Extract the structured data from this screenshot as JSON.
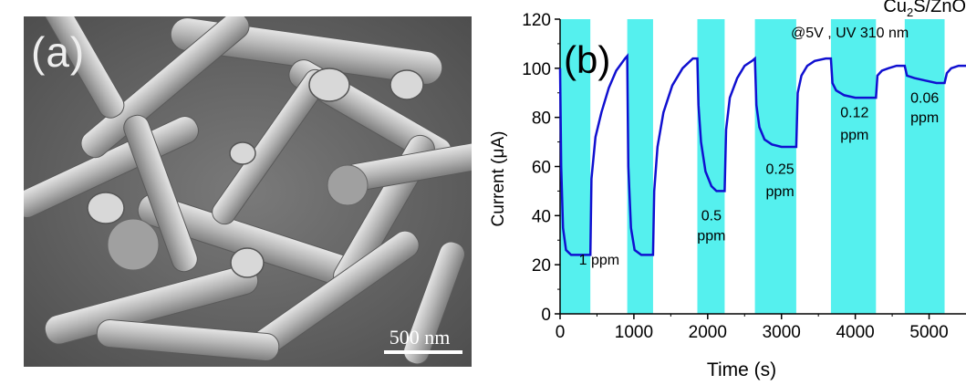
{
  "panel_a": {
    "label": "(a)",
    "scale_bar_label": "500 nm"
  },
  "chart_data": {
    "type": "line",
    "panel_label": "(b)",
    "corner_title": "Cu2S/ZnO",
    "condition": "@5V , UV  310 nm",
    "xlabel": "Time (s)",
    "ylabel": "Current (μA)",
    "xlim": [
      0,
      5500
    ],
    "ylim": [
      0,
      120
    ],
    "x_ticks": [
      0,
      1000,
      2000,
      3000,
      4000,
      5000
    ],
    "y_ticks": [
      0,
      20,
      40,
      60,
      80,
      100,
      120
    ],
    "line_color": "#1010d0",
    "band_color": "#55f0ee",
    "gas_on_intervals": [
      [
        0,
        410
      ],
      [
        910,
        1260
      ],
      [
        1860,
        2230
      ],
      [
        2640,
        3200
      ],
      [
        3670,
        4280
      ],
      [
        4670,
        5210
      ]
    ],
    "series": [
      {
        "values": [
          [
            0,
            100
          ],
          [
            15,
            60
          ],
          [
            40,
            35
          ],
          [
            80,
            26
          ],
          [
            150,
            24
          ],
          [
            410,
            24
          ],
          [
            425,
            55
          ],
          [
            480,
            72
          ],
          [
            560,
            82
          ],
          [
            660,
            92
          ],
          [
            760,
            99
          ],
          [
            880,
            104
          ],
          [
            910,
            105
          ],
          [
            925,
            60
          ],
          [
            960,
            35
          ],
          [
            1010,
            26
          ],
          [
            1100,
            24
          ],
          [
            1260,
            24
          ],
          [
            1275,
            50
          ],
          [
            1320,
            68
          ],
          [
            1400,
            82
          ],
          [
            1520,
            93
          ],
          [
            1660,
            100
          ],
          [
            1800,
            104
          ],
          [
            1860,
            104
          ],
          [
            1875,
            85
          ],
          [
            1910,
            70
          ],
          [
            1970,
            58
          ],
          [
            2050,
            52
          ],
          [
            2120,
            50
          ],
          [
            2230,
            50
          ],
          [
            2250,
            75
          ],
          [
            2300,
            88
          ],
          [
            2400,
            96
          ],
          [
            2500,
            101
          ],
          [
            2600,
            103
          ],
          [
            2640,
            104
          ],
          [
            2660,
            85
          ],
          [
            2700,
            76
          ],
          [
            2770,
            71
          ],
          [
            2870,
            69
          ],
          [
            3000,
            68
          ],
          [
            3200,
            68
          ],
          [
            3220,
            90
          ],
          [
            3270,
            97
          ],
          [
            3350,
            101
          ],
          [
            3450,
            103
          ],
          [
            3600,
            104
          ],
          [
            3670,
            104
          ],
          [
            3690,
            94
          ],
          [
            3740,
            91
          ],
          [
            3850,
            89
          ],
          [
            4000,
            88
          ],
          [
            4280,
            88
          ],
          [
            4300,
            97
          ],
          [
            4360,
            99
          ],
          [
            4450,
            100
          ],
          [
            4560,
            101
          ],
          [
            4670,
            101
          ],
          [
            4700,
            97
          ],
          [
            4800,
            96
          ],
          [
            4950,
            95
          ],
          [
            5100,
            94
          ],
          [
            5210,
            94
          ],
          [
            5240,
            98
          ],
          [
            5300,
            100
          ],
          [
            5400,
            101
          ],
          [
            5500,
            101
          ]
        ]
      }
    ],
    "annotations": [
      {
        "text": "1 ppm",
        "x": 530,
        "y": 20
      },
      {
        "text": "0.5",
        "x": 2050,
        "y": 38
      },
      {
        "text": "ppm",
        "x": 2050,
        "y": 30
      },
      {
        "text": "0.25",
        "x": 2980,
        "y": 57
      },
      {
        "text": "ppm",
        "x": 2980,
        "y": 48
      },
      {
        "text": "0.12",
        "x": 3990,
        "y": 80
      },
      {
        "text": "ppm",
        "x": 3990,
        "y": 71
      },
      {
        "text": "0.06",
        "x": 4940,
        "y": 86
      },
      {
        "text": "ppm",
        "x": 4940,
        "y": 78
      }
    ]
  }
}
